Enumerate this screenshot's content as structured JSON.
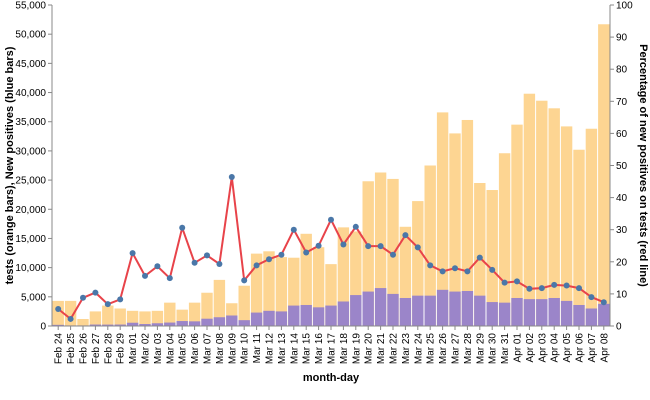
{
  "chart_data": {
    "type": "bar+line",
    "xlabel": "month-day",
    "ylabel_left": "tests (orange bars), New positives (blue bars)",
    "ylabel_right": "Percentage of new positives on tests (red line)",
    "ylim_left": [
      0,
      55000
    ],
    "ylim_right": [
      0,
      100
    ],
    "yticks_left": [
      "0",
      "5,000",
      "10,000",
      "15,000",
      "20,000",
      "25,000",
      "30,000",
      "35,000",
      "40,000",
      "45,000",
      "50,000",
      "55,000"
    ],
    "yticks_right": [
      "0",
      "10",
      "20",
      "30",
      "40",
      "50",
      "60",
      "70",
      "80",
      "90",
      "100"
    ],
    "categories": [
      "Feb 24",
      "Feb 25",
      "Feb 26",
      "Feb 27",
      "Feb 28",
      "Feb 29",
      "Mar 01",
      "Mar 02",
      "Mar 03",
      "Mar 04",
      "Mar 05",
      "Mar 06",
      "Mar 07",
      "Mar 08",
      "Mar 09",
      "Mar 10",
      "Mar 11",
      "Mar 12",
      "Mar 13",
      "Mar 14",
      "Mar 15",
      "Mar 16",
      "Mar 17",
      "Mar 18",
      "Mar 19",
      "Mar 20",
      "Mar 21",
      "Mar 22",
      "Mar 23",
      "Mar 24",
      "Mar 25",
      "Mar 26",
      "Mar 27",
      "Mar 28",
      "Mar 29",
      "Mar 30",
      "Mar 31",
      "Apr 01",
      "Apr 02",
      "Apr 03",
      "Apr 04",
      "Apr 05",
      "Apr 06",
      "Apr 07",
      "Apr 08"
    ],
    "series": [
      {
        "name": "tests",
        "axis": "left",
        "color": "#fdd592",
        "values": [
          4300,
          4300,
          1200,
          2500,
          3500,
          3000,
          2600,
          2500,
          2600,
          4000,
          2800,
          4000,
          5700,
          7900,
          3900,
          6900,
          12400,
          12800,
          11800,
          11700,
          15800,
          13500,
          10600,
          16900,
          16200,
          24800,
          26300,
          25200,
          17000,
          21400,
          27500,
          36600,
          33000,
          35300,
          24500,
          23300,
          29600,
          34500,
          39800,
          38600,
          37300,
          34200,
          30200,
          33800,
          51700
        ]
      },
      {
        "name": "New positives",
        "axis": "left",
        "color": "#9b85c9",
        "values": [
          200,
          100,
          100,
          250,
          240,
          250,
          560,
          340,
          470,
          590,
          850,
          800,
          1250,
          1500,
          1800,
          1000,
          2300,
          2600,
          2500,
          3500,
          3600,
          3200,
          3500,
          4200,
          5300,
          5900,
          6500,
          5500,
          4800,
          5200,
          5200,
          6200,
          5900,
          6000,
          5200,
          4100,
          4000,
          4800,
          4600,
          4600,
          4800,
          4300,
          3600,
          3000,
          3800
        ]
      },
      {
        "name": "Percentage of new positives on tests",
        "axis": "right",
        "color": "#e8434a",
        "marker_color": "#4a77a8",
        "values": [
          5.3,
          2.2,
          8.8,
          10.4,
          6.8,
          8.3,
          22.7,
          15.6,
          18.6,
          14.9,
          30.6,
          19.7,
          22.0,
          19.3,
          46.4,
          14.2,
          18.9,
          20.8,
          22.2,
          30.0,
          22.9,
          25.0,
          33.1,
          25.4,
          30.9,
          24.9,
          24.9,
          22.2,
          28.3,
          24.5,
          18.9,
          17.0,
          18.0,
          17.0,
          21.3,
          17.5,
          13.5,
          13.9,
          11.6,
          11.8,
          12.8,
          12.6,
          11.8,
          9.0,
          7.4
        ]
      }
    ]
  },
  "colors": {
    "tests": "#fdd592",
    "positives": "#9b85c9",
    "line": "#e8434a",
    "marker": "#4a77a8",
    "axis": "#888888"
  }
}
